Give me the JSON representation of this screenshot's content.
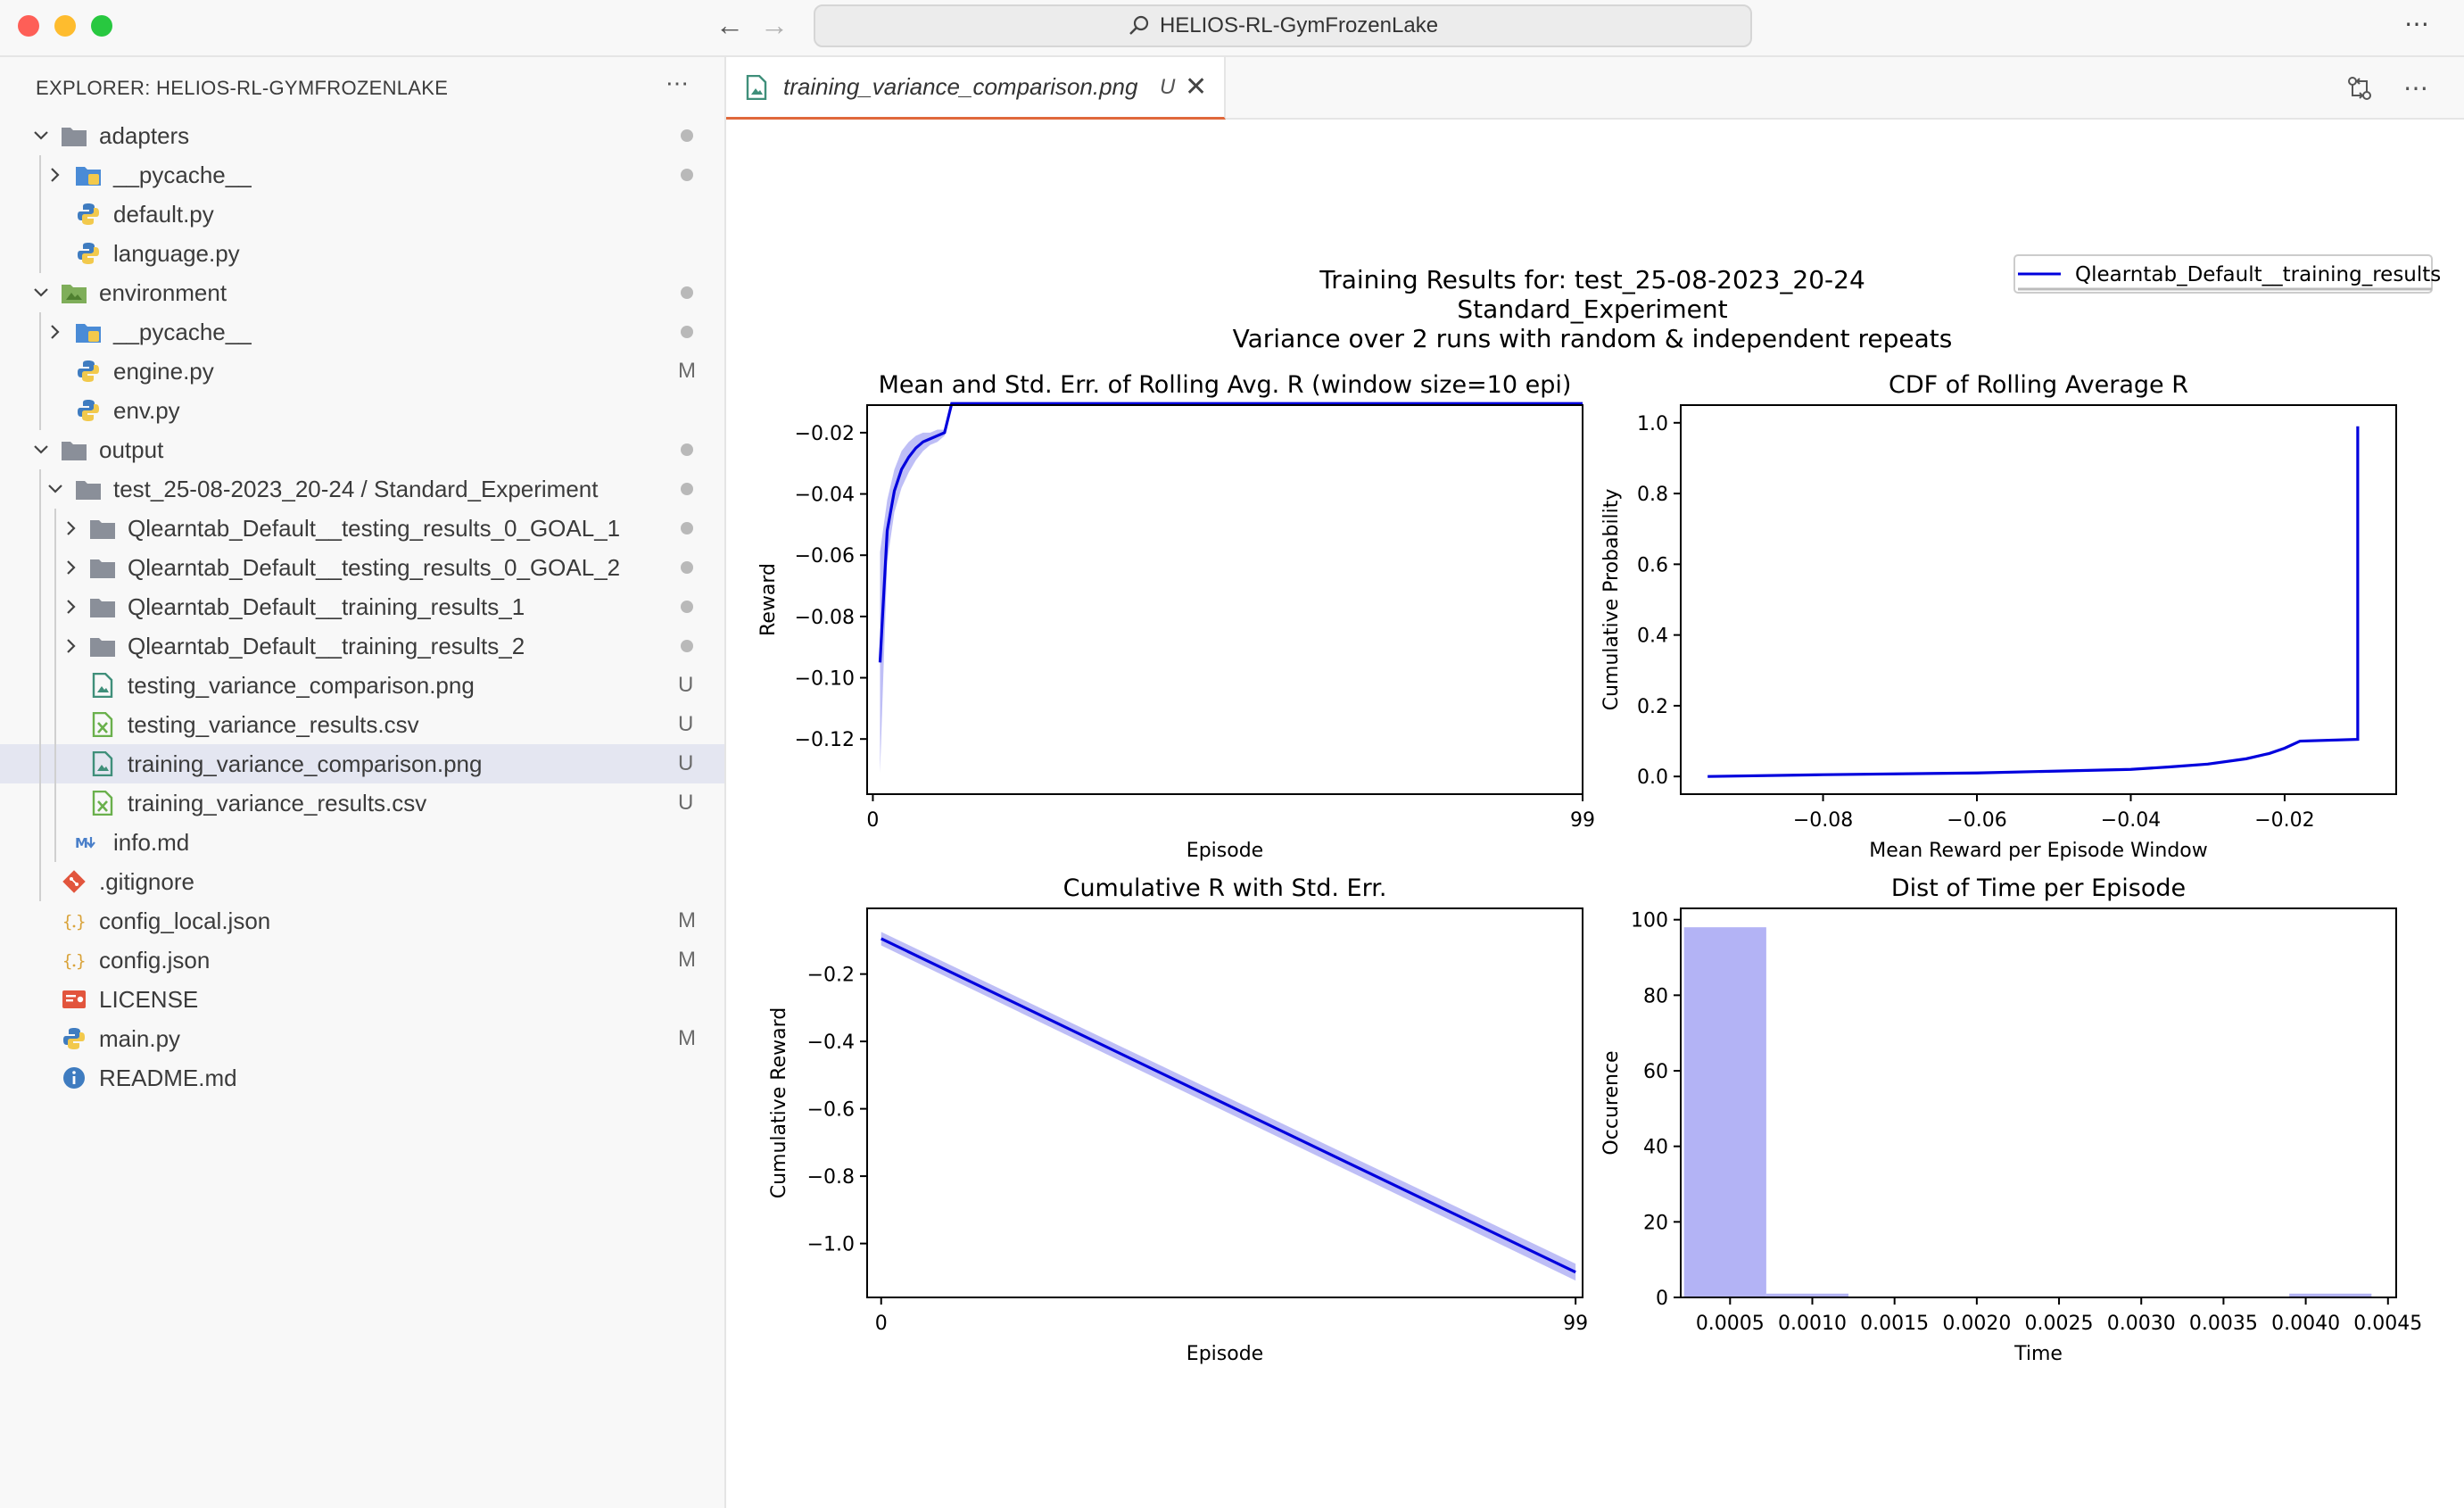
{
  "window": {
    "search_text": "HELIOS-RL-GymFrozenLake",
    "more": "⋯"
  },
  "sidebar": {
    "header": "EXPLORER: HELIOS-RL-GYMFROZENLAKE",
    "more": "⋯",
    "items": [
      {
        "label": "adapters",
        "kind": "folder",
        "depth": 0,
        "open": true,
        "status": "dot"
      },
      {
        "label": "__pycache__",
        "kind": "pyfolder",
        "depth": 1,
        "open": false,
        "status": "dot"
      },
      {
        "label": "default.py",
        "kind": "py",
        "depth": 1,
        "status": ""
      },
      {
        "label": "language.py",
        "kind": "py",
        "depth": 1,
        "status": ""
      },
      {
        "label": "environment",
        "kind": "envfolder",
        "depth": 0,
        "open": true,
        "status": "dot"
      },
      {
        "label": "__pycache__",
        "kind": "pyfolder",
        "depth": 1,
        "open": false,
        "status": "dot"
      },
      {
        "label": "engine.py",
        "kind": "py",
        "depth": 1,
        "status": "M"
      },
      {
        "label": "env.py",
        "kind": "py",
        "depth": 1,
        "status": ""
      },
      {
        "label": "output",
        "kind": "folder",
        "depth": 0,
        "open": true,
        "status": "dot"
      },
      {
        "label": "test_25-08-2023_20-24",
        "label_suffix": " / Standard_Experiment",
        "kind": "folder",
        "depth": 1,
        "open": true,
        "status": "dot"
      },
      {
        "label": "Qlearntab_Default__testing_results_0_GOAL_1",
        "kind": "folder",
        "depth": 2,
        "open": false,
        "status": "dot"
      },
      {
        "label": "Qlearntab_Default__testing_results_0_GOAL_2",
        "kind": "folder",
        "depth": 2,
        "open": false,
        "status": "dot"
      },
      {
        "label": "Qlearntab_Default__training_results_1",
        "kind": "folder",
        "depth": 2,
        "open": false,
        "status": "dot"
      },
      {
        "label": "Qlearntab_Default__training_results_2",
        "kind": "folder",
        "depth": 2,
        "open": false,
        "status": "dot"
      },
      {
        "label": "testing_variance_comparison.png",
        "kind": "png",
        "depth": 2,
        "status": "U"
      },
      {
        "label": "testing_variance_results.csv",
        "kind": "csv",
        "depth": 2,
        "status": "U"
      },
      {
        "label": "training_variance_comparison.png",
        "kind": "png",
        "depth": 2,
        "status": "U",
        "selected": true
      },
      {
        "label": "training_variance_results.csv",
        "kind": "csv",
        "depth": 2,
        "status": "U"
      },
      {
        "label": "info.md",
        "kind": "md",
        "depth": 1,
        "status": ""
      },
      {
        "label": ".gitignore",
        "kind": "git",
        "depth": 0,
        "status": ""
      },
      {
        "label": "config_local.json",
        "kind": "json",
        "depth": 0,
        "status": "M"
      },
      {
        "label": "config.json",
        "kind": "json",
        "depth": 0,
        "status": "M"
      },
      {
        "label": "LICENSE",
        "kind": "license",
        "depth": 0,
        "status": ""
      },
      {
        "label": "main.py",
        "kind": "py",
        "depth": 0,
        "status": "M"
      },
      {
        "label": "README.md",
        "kind": "info",
        "depth": 0,
        "status": ""
      }
    ]
  },
  "tab": {
    "label": "training_variance_comparison.png",
    "status": "U",
    "close": "✕"
  },
  "colors": {
    "line": "#0000dd",
    "band": "#b3b3f5",
    "selection": "#e4e6f1",
    "tab_accent": "#e0683b"
  },
  "figure": {
    "suptitle": [
      "Training Results for: test_25-08-2023_20-24",
      "Standard_Experiment",
      "Variance over 2 runs with random & independent repeats"
    ],
    "legend": "Qlearntab_Default__training_results"
  },
  "chart_data": [
    {
      "type": "line",
      "title": "Mean and Std. Err. of Rolling Avg. R (window size=10 epi)",
      "xlabel": "Episode",
      "ylabel": "Reward",
      "xlim": [
        -0.8,
        99
      ],
      "ylim": [
        -0.138,
        -0.011
      ],
      "xticks": [
        0,
        99
      ],
      "yticks": [
        -0.02,
        -0.04,
        -0.06,
        -0.08,
        -0.1,
        -0.12
      ],
      "ytick_labels": [
        "−0.02",
        "−0.04",
        "−0.06",
        "−0.08",
        "−0.10",
        "−0.12"
      ],
      "series": [
        {
          "x": [
            1,
            2,
            3,
            4,
            5,
            6,
            7,
            8,
            9,
            10,
            11,
            99
          ],
          "y": [
            -0.095,
            -0.052,
            -0.039,
            -0.032,
            -0.028,
            -0.025,
            -0.023,
            -0.022,
            -0.021,
            -0.02,
            -0.0105,
            -0.0105
          ],
          "err": [
            0.036,
            0.01,
            0.007,
            0.006,
            0.005,
            0.004,
            0.003,
            0.002,
            0.002,
            0.001,
            0.0,
            0.0
          ]
        }
      ]
    },
    {
      "type": "line",
      "title": "CDF of Rolling Average R",
      "xlabel": "Mean Reward per Episode Window",
      "ylabel": "Cumulative Probability",
      "xlim": [
        -0.0985,
        -0.0055
      ],
      "ylim": [
        -0.05,
        1.05
      ],
      "xticks": [
        -0.08,
        -0.06,
        -0.04,
        -0.02
      ],
      "xtick_labels": [
        "−0.08",
        "−0.06",
        "−0.04",
        "−0.02"
      ],
      "yticks": [
        0.0,
        0.2,
        0.4,
        0.6,
        0.8,
        1.0
      ],
      "ytick_labels": [
        "0.0",
        "0.2",
        "0.4",
        "0.6",
        "0.8",
        "1.0"
      ],
      "series": [
        {
          "x": [
            -0.095,
            -0.08,
            -0.06,
            -0.05,
            -0.04,
            -0.035,
            -0.03,
            -0.025,
            -0.022,
            -0.02,
            -0.018,
            -0.0105,
            -0.0105
          ],
          "y": [
            0.0,
            0.005,
            0.01,
            0.015,
            0.02,
            0.027,
            0.035,
            0.05,
            0.065,
            0.08,
            0.1,
            0.105,
            0.99
          ]
        }
      ]
    },
    {
      "type": "line",
      "title": "Cumulative R with Std. Err.",
      "xlabel": "Episode",
      "ylabel": "Cumulative Reward",
      "xlim": [
        -2,
        100
      ],
      "ylim": [
        -1.16,
        -0.005
      ],
      "xticks": [
        0,
        99
      ],
      "yticks": [
        -0.2,
        -0.4,
        -0.6,
        -0.8,
        -1.0
      ],
      "ytick_labels": [
        "−0.2",
        "−0.4",
        "−0.6",
        "−0.8",
        "−1.0"
      ],
      "series": [
        {
          "x": [
            0,
            99
          ],
          "y": [
            -0.095,
            -1.085
          ],
          "err": [
            0.02,
            0.025
          ]
        }
      ]
    },
    {
      "type": "bar",
      "title": "Dist of Time per Episode",
      "xlabel": "Time",
      "ylabel": "Occurence",
      "xlim": [
        0.0002,
        0.00455
      ],
      "ylim": [
        0,
        103
      ],
      "xticks": [
        0.0005,
        0.001,
        0.0015,
        0.002,
        0.0025,
        0.003,
        0.0035,
        0.004,
        0.0045
      ],
      "xtick_labels": [
        "0.0005",
        "0.0010",
        "0.0015",
        "0.0020",
        "0.0025",
        "0.0030",
        "0.0035",
        "0.0040",
        "0.0045"
      ],
      "yticks": [
        0,
        20,
        40,
        60,
        80,
        100
      ],
      "ytick_labels": [
        "0",
        "20",
        "40",
        "60",
        "80",
        "100"
      ],
      "bins": [
        {
          "x0": 0.00022,
          "x1": 0.00072,
          "count": 98
        },
        {
          "x0": 0.00072,
          "x1": 0.00122,
          "count": 1
        },
        {
          "x0": 0.0039,
          "x1": 0.0044,
          "count": 1
        }
      ]
    }
  ]
}
